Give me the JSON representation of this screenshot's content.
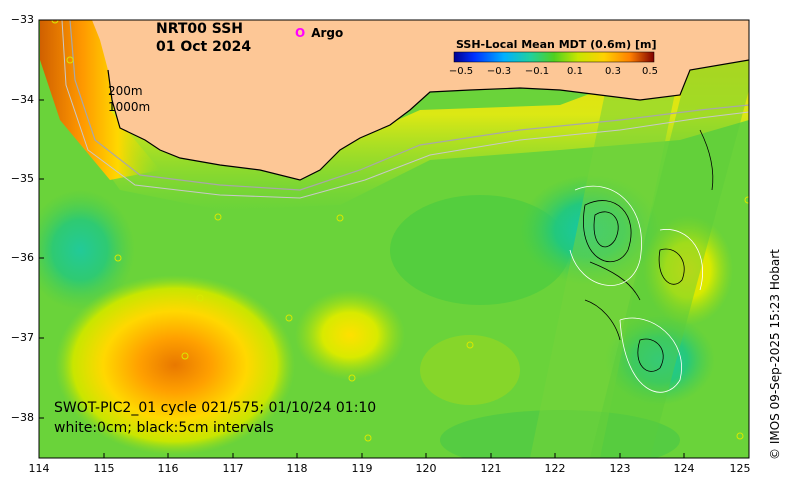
{
  "map": {
    "title_line1": "NRT00 SSH",
    "title_line2": "01 Oct 2024",
    "argo_label": "Argo",
    "argo_marker": "O",
    "depth_200": "200m",
    "depth_1000": "1000m",
    "footnote_line1": "SWOT-PIC2_01 cycle 021/575; 01/10/24 01:10",
    "footnote_line2": "white:0cm; black:5cm intervals",
    "credit": "© IMOS 09-Sep-2025 15:23 Hobart",
    "land_color": "#fdc796",
    "ocean_base_color": "#6ad33a"
  },
  "colorbar": {
    "title": "SSH-Local Mean MDT (0.6m) [m]",
    "ticks": [
      "−0.5",
      "−0.3",
      "−0.1",
      "0.1",
      "0.3",
      "0.5"
    ],
    "colors": [
      "#00008f",
      "#0050ff",
      "#00c8ff",
      "#20d0a0",
      "#50d020",
      "#c8e600",
      "#ffd200",
      "#ff8000",
      "#c00000",
      "#800000"
    ]
  },
  "axes": {
    "lat_ticks": [
      "−33",
      "−34",
      "−35",
      "−36",
      "−37",
      "−38"
    ],
    "lon_ticks": [
      "114",
      "115",
      "116",
      "117",
      "118",
      "119",
      "120",
      "121",
      "122",
      "123",
      "124",
      "125"
    ],
    "lat_range": [
      -38.5,
      -33
    ],
    "lon_range": [
      114,
      125
    ]
  }
}
